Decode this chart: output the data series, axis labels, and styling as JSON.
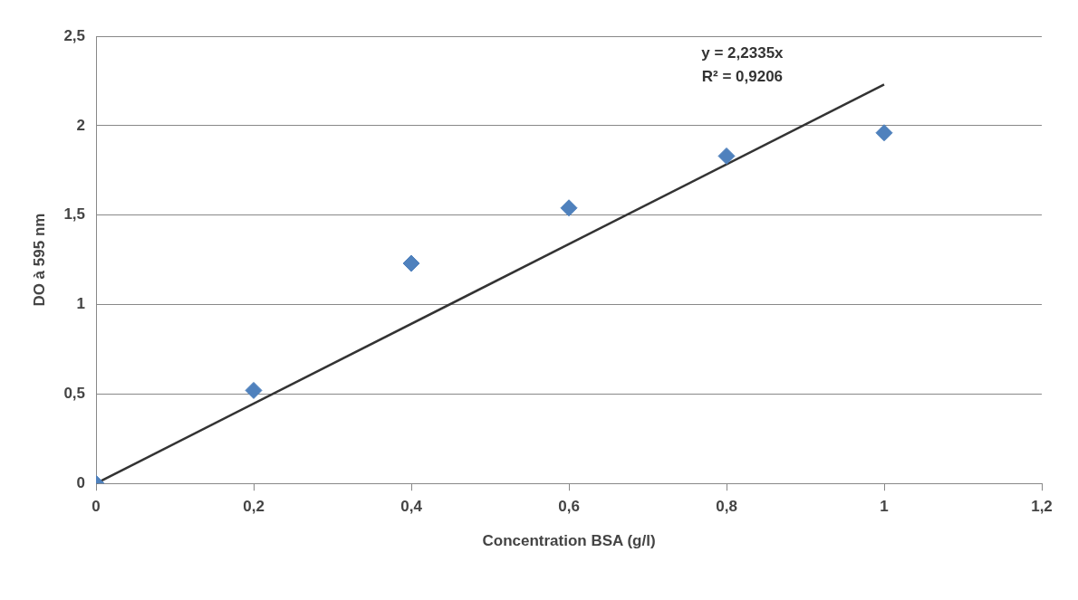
{
  "chart_data": {
    "type": "scatter",
    "xlabel": "Concentration BSA (g/l)",
    "ylabel": "DO à 595 nm",
    "series": [
      {
        "type": "scatter",
        "marker": "diamond",
        "color": "#4f81bd",
        "x": [
          0,
          0.2,
          0.4,
          0.6,
          0.8,
          1.0
        ],
        "values": [
          0,
          0.52,
          1.23,
          1.54,
          1.83,
          1.96
        ]
      },
      {
        "type": "line",
        "marker": "none",
        "color": "#333333",
        "x": [
          0,
          1
        ],
        "values": [
          0,
          2.23
        ]
      }
    ],
    "xlim": [
      0,
      1.2
    ],
    "xticks": [
      0,
      {
        "value": 0.2,
        "label": "0,2"
      },
      {
        "value": 0.4,
        "label": "0,4"
      },
      {
        "value": 0.6,
        "label": "0,6"
      },
      {
        "value": 0.8,
        "label": "0,8"
      },
      1,
      {
        "value": 1.2,
        "label": "1,2"
      }
    ],
    "ylim": [
      0,
      2.5
    ],
    "yticks": [
      0,
      {
        "value": 0.5,
        "label": "0,5"
      },
      1,
      {
        "value": 1.5,
        "label": "1,5"
      },
      2,
      {
        "value": 2.5,
        "label": "2,5"
      }
    ],
    "grid": "y",
    "legend": false,
    "annotations": [
      "y = 2,2335x",
      "R² = 0,9206"
    ]
  }
}
